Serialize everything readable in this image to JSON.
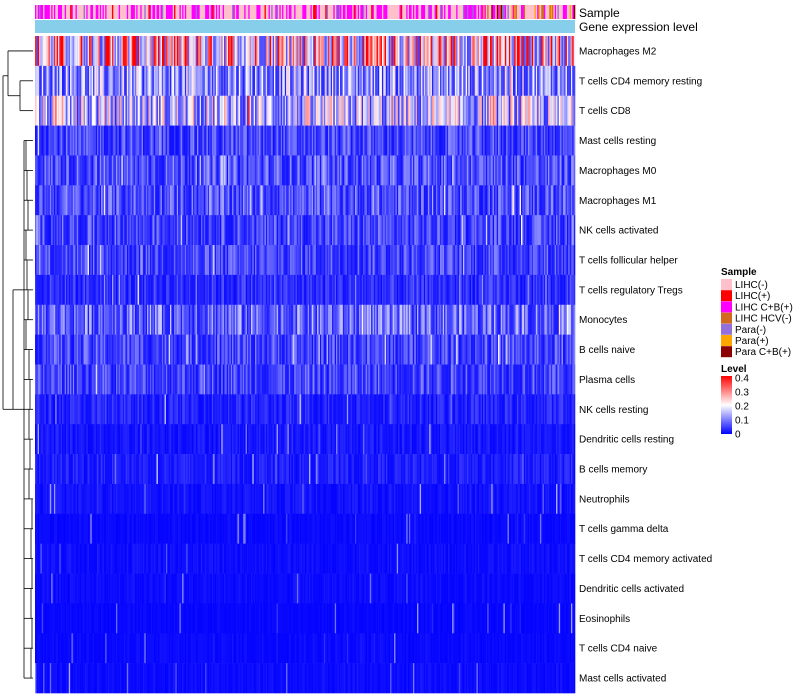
{
  "chart_data": {
    "type": "heatmap",
    "annotation_labels": [
      "Sample",
      "Gene expression level"
    ],
    "rows": [
      {
        "name": "Macrophages M2",
        "mean": 0.27
      },
      {
        "name": "T cells CD4 memory resting",
        "mean": 0.13
      },
      {
        "name": "T cells CD8",
        "mean": 0.16
      },
      {
        "name": "Mast cells resting",
        "mean": 0.06
      },
      {
        "name": "Macrophages M0",
        "mean": 0.07
      },
      {
        "name": "Macrophages M1",
        "mean": 0.07
      },
      {
        "name": "NK cells activated",
        "mean": 0.06
      },
      {
        "name": "T cells follicular helper",
        "mean": 0.06
      },
      {
        "name": "T cells regulatory  Tregs",
        "mean": 0.04
      },
      {
        "name": "Monocytes",
        "mean": 0.09
      },
      {
        "name": "B cells naive",
        "mean": 0.06
      },
      {
        "name": "Plasma cells",
        "mean": 0.06
      },
      {
        "name": "NK cells resting",
        "mean": 0.03
      },
      {
        "name": "Dendritic cells resting",
        "mean": 0.02
      },
      {
        "name": "B cells memory",
        "mean": 0.025
      },
      {
        "name": "Neutrophils",
        "mean": 0.015
      },
      {
        "name": "T cells gamma delta",
        "mean": 0.008
      },
      {
        "name": "T cells CD4 memory activated",
        "mean": 0.012
      },
      {
        "name": "Dendritic cells activated",
        "mean": 0.01
      },
      {
        "name": "Eosinophils",
        "mean": 0.006
      },
      {
        "name": "T cells CD4 naive",
        "mean": 0.008
      },
      {
        "name": "Mast cells activated",
        "mean": 0.01
      }
    ],
    "n_samples": 400,
    "sample_legend": {
      "title": "Sample",
      "entries": [
        {
          "label": "LIHC(-)",
          "color": "#FFC0CB"
        },
        {
          "label": "LIHC(+)",
          "color": "#FF0000"
        },
        {
          "label": "LIHC C+B(+)",
          "color": "#FF00FF"
        },
        {
          "label": "LIHC HCV(-)",
          "color": "#D2691E"
        },
        {
          "label": "Para(-)",
          "color": "#9370DB"
        },
        {
          "label": "Para(+)",
          "color": "#FFA500"
        },
        {
          "label": "Para C+B(+)",
          "color": "#8B0000"
        }
      ]
    },
    "level_legend": {
      "title": "Level",
      "ticks": [
        "0.4",
        "0.3",
        "0.2",
        "0.1",
        "0"
      ],
      "min": 0,
      "max": 0.4,
      "colors": [
        "#0000FF",
        "#FFFFFF",
        "#FF0000"
      ]
    },
    "gene_expression_color": "#87CEEB"
  }
}
